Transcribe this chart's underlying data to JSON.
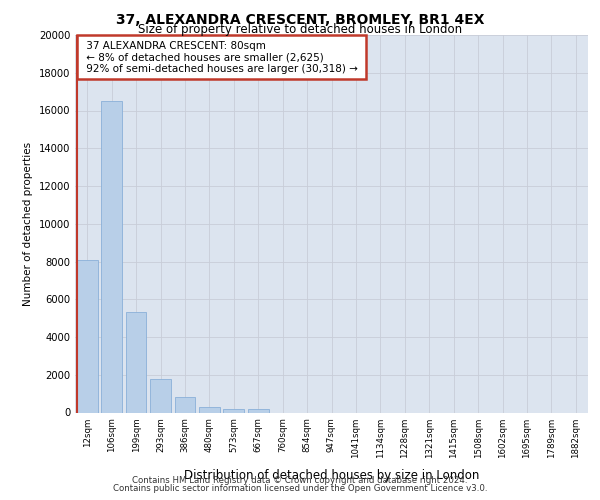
{
  "title": "37, ALEXANDRA CRESCENT, BROMLEY, BR1 4EX",
  "subtitle": "Size of property relative to detached houses in London",
  "xlabel": "Distribution of detached houses by size in London",
  "ylabel": "Number of detached properties",
  "footnote1": "Contains HM Land Registry data © Crown copyright and database right 2024.",
  "footnote2": "Contains public sector information licensed under the Open Government Licence v3.0.",
  "annotation_line1": "37 ALEXANDRA CRESCENT: 80sqm",
  "annotation_line2": "← 8% of detached houses are smaller (2,625)",
  "annotation_line3": "92% of semi-detached houses are larger (30,318) →",
  "categories": [
    "12sqm",
    "106sqm",
    "199sqm",
    "293sqm",
    "386sqm",
    "480sqm",
    "573sqm",
    "667sqm",
    "760sqm",
    "854sqm",
    "947sqm",
    "1041sqm",
    "1134sqm",
    "1228sqm",
    "1321sqm",
    "1415sqm",
    "1508sqm",
    "1602sqm",
    "1695sqm",
    "1789sqm",
    "1882sqm"
  ],
  "values": [
    8100,
    16500,
    5300,
    1800,
    800,
    300,
    200,
    200,
    0,
    0,
    0,
    0,
    0,
    0,
    0,
    0,
    0,
    0,
    0,
    0,
    0
  ],
  "bar_color": "#b8cfe8",
  "bar_edge_color": "#8ab0d8",
  "highlight_color": "#c0392b",
  "annotation_box_color": "#c0392b",
  "background_color": "#dce4ef",
  "ylim": [
    0,
    20000
  ],
  "yticks": [
    0,
    2000,
    4000,
    6000,
    8000,
    10000,
    12000,
    14000,
    16000,
    18000,
    20000
  ],
  "red_line_x": 0.5
}
